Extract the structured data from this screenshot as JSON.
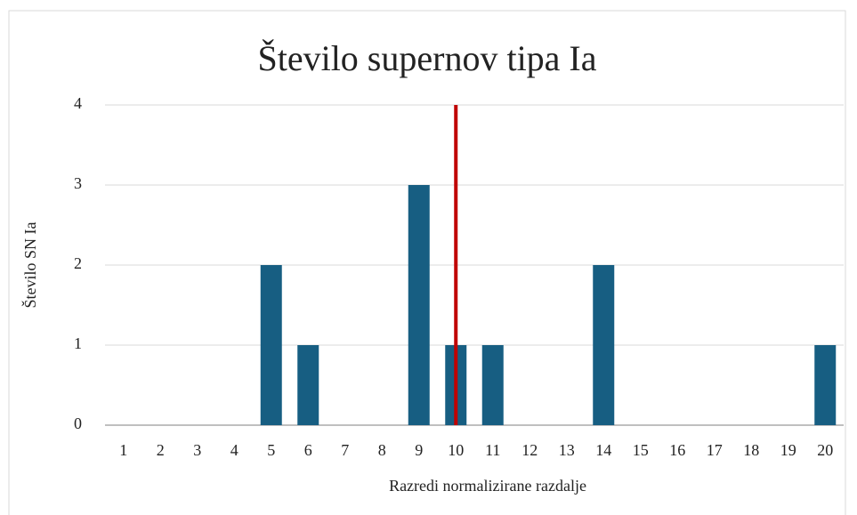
{
  "chart_data": {
    "type": "bar",
    "title": "Število supernov tipa Ia",
    "x_label": "Razredi normalizirane razdalje",
    "y_label": "Število SN Ia",
    "categories": [
      "1",
      "2",
      "3",
      "4",
      "5",
      "6",
      "7",
      "8",
      "9",
      "10",
      "11",
      "12",
      "13",
      "14",
      "15",
      "16",
      "17",
      "18",
      "19",
      "20"
    ],
    "values": [
      0,
      0,
      0,
      0,
      2,
      1,
      0,
      0,
      3,
      1,
      1,
      0,
      0,
      2,
      0,
      0,
      0,
      0,
      0,
      1
    ],
    "color": "#175e82",
    "ylim": [
      0,
      4
    ],
    "yticks": [
      0,
      1,
      2,
      3,
      4
    ],
    "grid": true,
    "reference_line": {
      "category": "10",
      "color": "#c00000"
    }
  }
}
